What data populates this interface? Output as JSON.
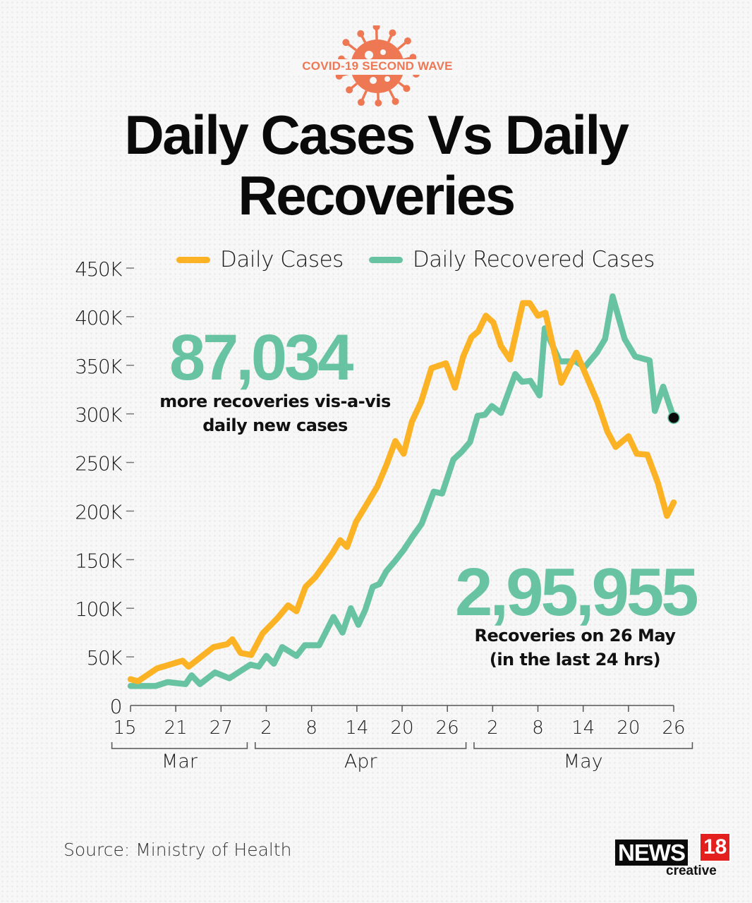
{
  "header": {
    "badge_text": "COVID-19 SECOND WAVE",
    "badge_icon": "virus-icon",
    "title_line1": "Daily Cases Vs Daily",
    "title_line2": "Recoveries"
  },
  "colors": {
    "cases": "#fbb325",
    "recovered": "#68c3a3",
    "badge": "#ee7754",
    "axis": "#555555",
    "end_marker": "#0a0a0a"
  },
  "annotations": {
    "difference_value": "87,034",
    "difference_line1": "more recoveries vis-a-vis",
    "difference_line2": "daily new cases",
    "latest_value": "2,95,955",
    "latest_line1": "Recoveries on 26 May",
    "latest_line2": "(in the last 24 hrs)"
  },
  "footer": {
    "source": "Source: Ministry of Health",
    "logo_main": "NEWS",
    "logo_number": "18",
    "logo_sub": "creative"
  },
  "chart_data": {
    "type": "line",
    "title": "Daily Cases Vs Daily Recoveries",
    "xlabel": "",
    "ylabel": "",
    "x_start": "2021-03-15",
    "x_end": "2021-05-26",
    "ylim": [
      0,
      450000
    ],
    "y_ticks": [
      0,
      50000,
      100000,
      150000,
      200000,
      250000,
      300000,
      350000,
      400000,
      450000
    ],
    "y_tick_labels": [
      "0",
      "50K",
      "100K",
      "150K",
      "200K",
      "250K",
      "300K",
      "350K",
      "400K",
      "450K"
    ],
    "x_ticks": [
      {
        "day": 0,
        "label": "15"
      },
      {
        "day": 6,
        "label": "21"
      },
      {
        "day": 12,
        "label": "27"
      },
      {
        "day": 18,
        "label": "2"
      },
      {
        "day": 24,
        "label": "8"
      },
      {
        "day": 30,
        "label": "14"
      },
      {
        "day": 36,
        "label": "20"
      },
      {
        "day": 42,
        "label": "26"
      },
      {
        "day": 48,
        "label": "2"
      },
      {
        "day": 54,
        "label": "8"
      },
      {
        "day": 60,
        "label": "14"
      },
      {
        "day": 66,
        "label": "20"
      },
      {
        "day": 72,
        "label": "26"
      }
    ],
    "month_groups": [
      {
        "label": "Mar",
        "from_day": -2,
        "to_day": 15
      },
      {
        "label": "Apr",
        "from_day": 17,
        "to_day": 44
      },
      {
        "label": "May",
        "from_day": 46,
        "to_day": 74
      }
    ],
    "grid": false,
    "legend_position": "top",
    "series": [
      {
        "name": "Daily Cases",
        "color": "#fbb325",
        "points": [
          [
            0,
            27000
          ],
          [
            1,
            25000
          ],
          [
            3.5,
            38000
          ],
          [
            5.6,
            43000
          ],
          [
            6.9,
            46000
          ],
          [
            7.7,
            40000
          ],
          [
            11,
            60000
          ],
          [
            12.8,
            63000
          ],
          [
            13.5,
            68000
          ],
          [
            14.6,
            54000
          ],
          [
            16,
            52000
          ],
          [
            17.5,
            74000
          ],
          [
            19.5,
            90000
          ],
          [
            20.9,
            103000
          ],
          [
            22,
            97000
          ],
          [
            23.2,
            122000
          ],
          [
            24.5,
            132000
          ],
          [
            25.7,
            145000
          ],
          [
            26.7,
            156000
          ],
          [
            27.8,
            170000
          ],
          [
            28.7,
            163000
          ],
          [
            29.9,
            189000
          ],
          [
            31.3,
            207000
          ],
          [
            32.7,
            225000
          ],
          [
            33.9,
            247000
          ],
          [
            35.1,
            272000
          ],
          [
            36.2,
            259000
          ],
          [
            37.3,
            292000
          ],
          [
            38.5,
            312000
          ],
          [
            39.9,
            347000
          ],
          [
            41.8,
            352000
          ],
          [
            43,
            327000
          ],
          [
            44.1,
            359000
          ],
          [
            45.2,
            379000
          ],
          [
            46.1,
            385000
          ],
          [
            47.1,
            401000
          ],
          [
            48.1,
            394000
          ],
          [
            49.1,
            370000
          ],
          [
            50.3,
            356000
          ],
          [
            52,
            414000
          ],
          [
            52.9,
            414000
          ],
          [
            54,
            401000
          ],
          [
            55,
            404000
          ],
          [
            57.1,
            332000
          ],
          [
            59.1,
            363000
          ],
          [
            60.3,
            341000
          ],
          [
            61.9,
            312000
          ],
          [
            63.2,
            282000
          ],
          [
            64.3,
            266000
          ],
          [
            66,
            277000
          ],
          [
            67.1,
            259000
          ],
          [
            68.5,
            258000
          ],
          [
            69.9,
            229000
          ],
          [
            71.1,
            195000
          ],
          [
            72,
            208921
          ]
        ]
      },
      {
        "name": "Daily Recovered Cases",
        "color": "#68c3a3",
        "points": [
          [
            0,
            20000
          ],
          [
            3.3,
            20000
          ],
          [
            4.9,
            24000
          ],
          [
            7.3,
            22000
          ],
          [
            8.1,
            31000
          ],
          [
            9.2,
            22000
          ],
          [
            11.2,
            34000
          ],
          [
            13.1,
            28000
          ],
          [
            15.9,
            42000
          ],
          [
            17,
            40000
          ],
          [
            18,
            51000
          ],
          [
            19,
            43000
          ],
          [
            20.1,
            60000
          ],
          [
            22,
            51000
          ],
          [
            23.1,
            62000
          ],
          [
            25,
            62000
          ],
          [
            26.9,
            91000
          ],
          [
            28.1,
            75000
          ],
          [
            29.2,
            100000
          ],
          [
            30.2,
            83000
          ],
          [
            31.1,
            98000
          ],
          [
            32.1,
            122000
          ],
          [
            33,
            125000
          ],
          [
            33.9,
            138000
          ],
          [
            35.1,
            149000
          ],
          [
            36.2,
            160000
          ],
          [
            37.4,
            174000
          ],
          [
            38.6,
            187000
          ],
          [
            40.2,
            220000
          ],
          [
            41.3,
            218000
          ],
          [
            42.8,
            253000
          ],
          [
            43.9,
            261000
          ],
          [
            45,
            271000
          ],
          [
            46,
            298000
          ],
          [
            46.97,
            299000
          ],
          [
            47.9,
            308000
          ],
          [
            49.1,
            301000
          ],
          [
            51,
            341000
          ],
          [
            51.9,
            333000
          ],
          [
            53,
            334000
          ],
          [
            54.2,
            319000
          ],
          [
            54.9,
            388000
          ],
          [
            56.9,
            354000
          ],
          [
            59,
            354000
          ],
          [
            60.2,
            348000
          ],
          [
            61.8,
            363000
          ],
          [
            62.9,
            377000
          ],
          [
            63.9,
            421000
          ],
          [
            65.5,
            377000
          ],
          [
            66.9,
            359000
          ],
          [
            68.8,
            355000
          ],
          [
            69.5,
            303000
          ],
          [
            70.6,
            328000
          ],
          [
            72,
            295955
          ]
        ]
      }
    ],
    "end_marker": {
      "series": "Daily Recovered Cases",
      "day": 72,
      "value": 295955
    }
  }
}
